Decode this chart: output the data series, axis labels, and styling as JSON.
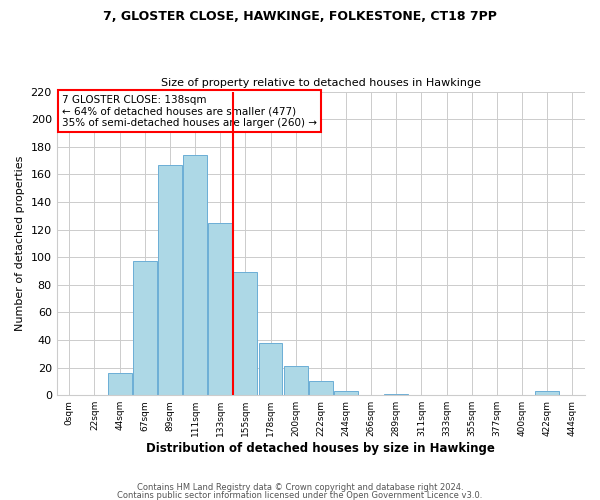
{
  "title": "7, GLOSTER CLOSE, HAWKINGE, FOLKESTONE, CT18 7PP",
  "subtitle": "Size of property relative to detached houses in Hawkinge",
  "xlabel": "Distribution of detached houses by size in Hawkinge",
  "ylabel": "Number of detached properties",
  "bar_labels": [
    "0sqm",
    "22sqm",
    "44sqm",
    "67sqm",
    "89sqm",
    "111sqm",
    "133sqm",
    "155sqm",
    "178sqm",
    "200sqm",
    "222sqm",
    "244sqm",
    "266sqm",
    "289sqm",
    "311sqm",
    "333sqm",
    "355sqm",
    "377sqm",
    "400sqm",
    "422sqm",
    "444sqm"
  ],
  "bar_values": [
    0,
    0,
    16,
    97,
    167,
    174,
    125,
    89,
    38,
    21,
    10,
    3,
    0,
    1,
    0,
    0,
    0,
    0,
    0,
    3,
    0
  ],
  "bar_color": "#add8e6",
  "bar_edge_color": "#6baed6",
  "vline_bar_index": 6,
  "vline_color": "red",
  "annotation_title": "7 GLOSTER CLOSE: 138sqm",
  "annotation_line1": "← 64% of detached houses are smaller (477)",
  "annotation_line2": "35% of semi-detached houses are larger (260) →",
  "annotation_box_color": "white",
  "annotation_box_edge": "red",
  "ylim": [
    0,
    220
  ],
  "yticks": [
    0,
    20,
    40,
    60,
    80,
    100,
    120,
    140,
    160,
    180,
    200,
    220
  ],
  "footer1": "Contains HM Land Registry data © Crown copyright and database right 2024.",
  "footer2": "Contains public sector information licensed under the Open Government Licence v3.0."
}
